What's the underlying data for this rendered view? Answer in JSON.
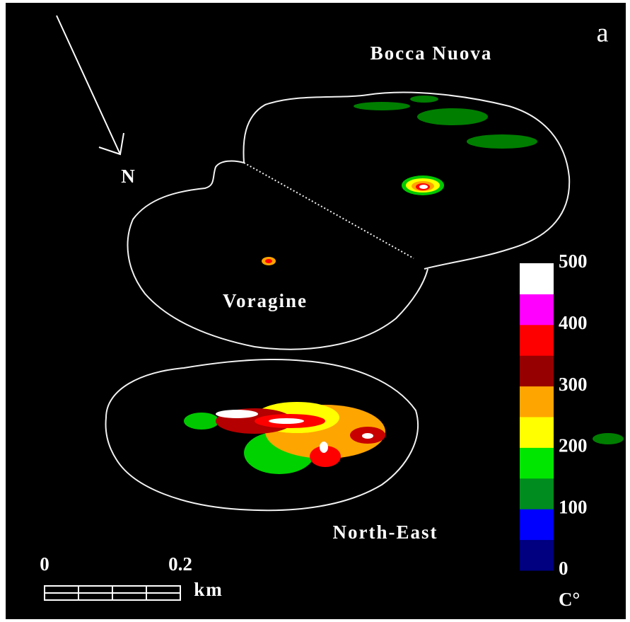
{
  "panel_label": "a",
  "compass": "N",
  "labels": {
    "bocca_nuova": "Bocca Nuova",
    "voragine": "Voragine",
    "north_east": "North-East"
  },
  "scale_bar": {
    "ticks": [
      0,
      0.2
    ],
    "unit": "km"
  },
  "colorbar": {
    "lim": [
      0,
      500
    ],
    "ticks": [
      0,
      100,
      200,
      300,
      400,
      500
    ],
    "colors": [
      "#000080",
      "#0000ff",
      "#008c1e",
      "#00e600",
      "#ffff00",
      "#ffa500",
      "#960000",
      "#ff0000",
      "#ff00ff",
      "#ffffff"
    ],
    "unit": "C°"
  }
}
